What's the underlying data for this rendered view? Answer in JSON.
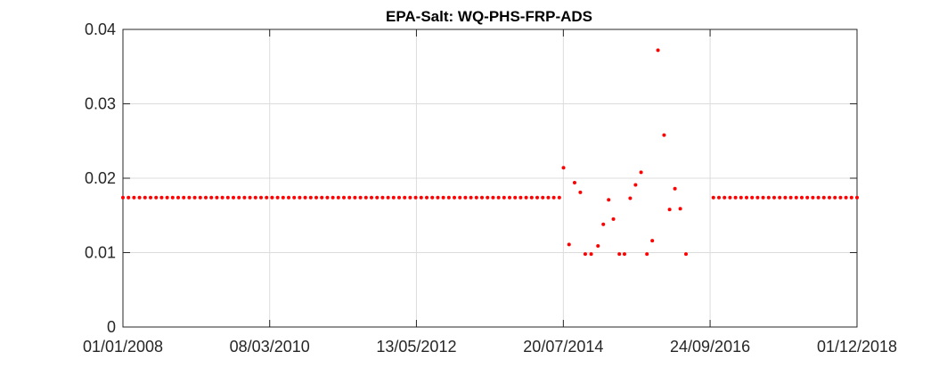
{
  "chart_data": {
    "type": "scatter",
    "title": "EPA-Salt: WQ-PHS-FRP-ADS",
    "xlabel": "",
    "ylabel": "",
    "x_axis_kind": "date",
    "xlim": [
      "2008-01-01",
      "2018-12-01"
    ],
    "ylim": [
      0,
      0.04
    ],
    "x_ticks": [
      "2008-01-01",
      "2010-03-08",
      "2012-05-13",
      "2014-07-20",
      "2016-09-24",
      "2018-12-01"
    ],
    "x_tick_labels": [
      "01/01/2008",
      "08/03/2010",
      "13/05/2012",
      "20/07/2014",
      "24/09/2016",
      "01/12/2018"
    ],
    "y_ticks": [
      0,
      0.01,
      0.02,
      0.03,
      0.04
    ],
    "y_tick_labels": [
      "0",
      "0.01",
      "0.02",
      "0.03",
      "0.04"
    ],
    "grid": true,
    "marker_color": "#ff0000",
    "constant_series": {
      "y": 0.0174,
      "periods": [
        {
          "start": "2008-01-01",
          "end": "2014-07-20",
          "step_days": 30
        },
        {
          "start": "2016-10-12",
          "end": "2018-12-01",
          "step_days": 30
        }
      ]
    },
    "points": [
      {
        "x": "2014-07-21",
        "y": 0.0214
      },
      {
        "x": "2014-08-20",
        "y": 0.0111
      },
      {
        "x": "2014-09-19",
        "y": 0.0194
      },
      {
        "x": "2014-10-20",
        "y": 0.0181
      },
      {
        "x": "2014-11-16",
        "y": 0.0098
      },
      {
        "x": "2014-12-18",
        "y": 0.0098
      },
      {
        "x": "2015-01-24",
        "y": 0.0109
      },
      {
        "x": "2015-02-22",
        "y": 0.0138
      },
      {
        "x": "2015-03-23",
        "y": 0.0171
      },
      {
        "x": "2015-04-18",
        "y": 0.0145
      },
      {
        "x": "2015-05-20",
        "y": 0.0098
      },
      {
        "x": "2015-06-17",
        "y": 0.0098
      },
      {
        "x": "2015-07-18",
        "y": 0.0173
      },
      {
        "x": "2015-08-16",
        "y": 0.0191
      },
      {
        "x": "2015-09-15",
        "y": 0.0208
      },
      {
        "x": "2015-10-17",
        "y": 0.0098
      },
      {
        "x": "2015-11-15",
        "y": 0.0116
      },
      {
        "x": "2015-12-16",
        "y": 0.0372
      },
      {
        "x": "2016-01-18",
        "y": 0.0258
      },
      {
        "x": "2016-02-17",
        "y": 0.0158
      },
      {
        "x": "2016-03-17",
        "y": 0.0186
      },
      {
        "x": "2016-04-15",
        "y": 0.0159
      },
      {
        "x": "2016-05-16",
        "y": 0.0098
      }
    ]
  }
}
